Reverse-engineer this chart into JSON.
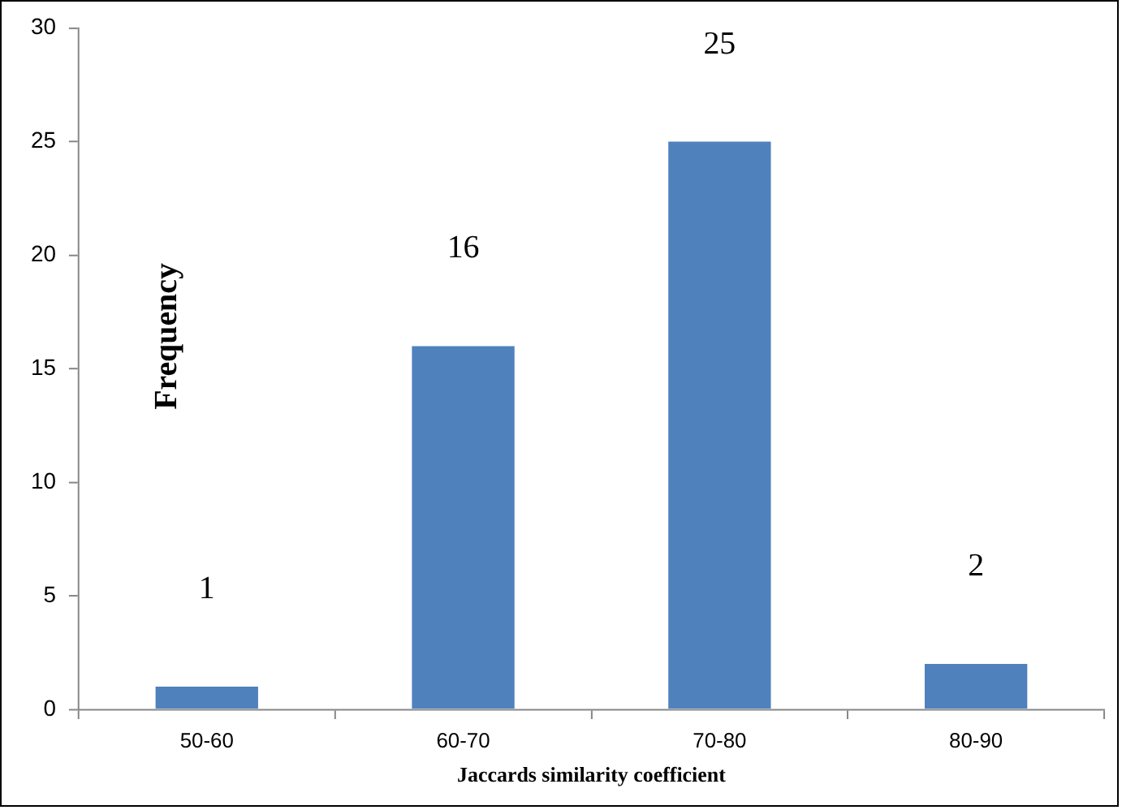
{
  "chart_data": {
    "type": "bar",
    "xlabel": "Jaccards similarity coefficient",
    "ylabel": "Frequency",
    "categories": [
      "50-60",
      "60-70",
      "70-80",
      "80-90"
    ],
    "values": [
      1,
      16,
      25,
      2
    ],
    "color": "#4f81bd",
    "ylim": [
      0,
      30
    ],
    "yticks": [
      0,
      5,
      10,
      15,
      20,
      25,
      30
    ],
    "grid": false,
    "legend": false,
    "data_labels": true
  }
}
